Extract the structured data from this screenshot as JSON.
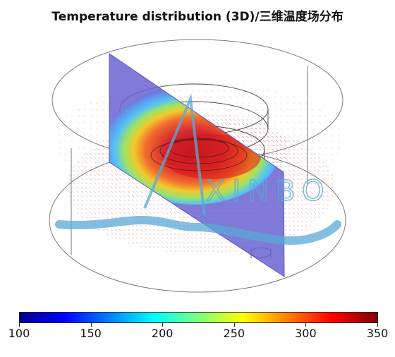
{
  "title": "Temperature distribution (3D)/三维温度场分布",
  "watermark": {
    "text": "XINBO",
    "color": "#5aa9d6"
  },
  "colorbar": {
    "min": 100,
    "max": 350,
    "colormap": "jet",
    "ticks": [
      "100",
      "150",
      "200",
      "250",
      "300",
      "350"
    ],
    "colors": [
      "#00008f",
      "#0000ff",
      "#0080ff",
      "#00ffff",
      "#80ff80",
      "#ffff00",
      "#ff8000",
      "#ff0000",
      "#800000"
    ]
  }
}
